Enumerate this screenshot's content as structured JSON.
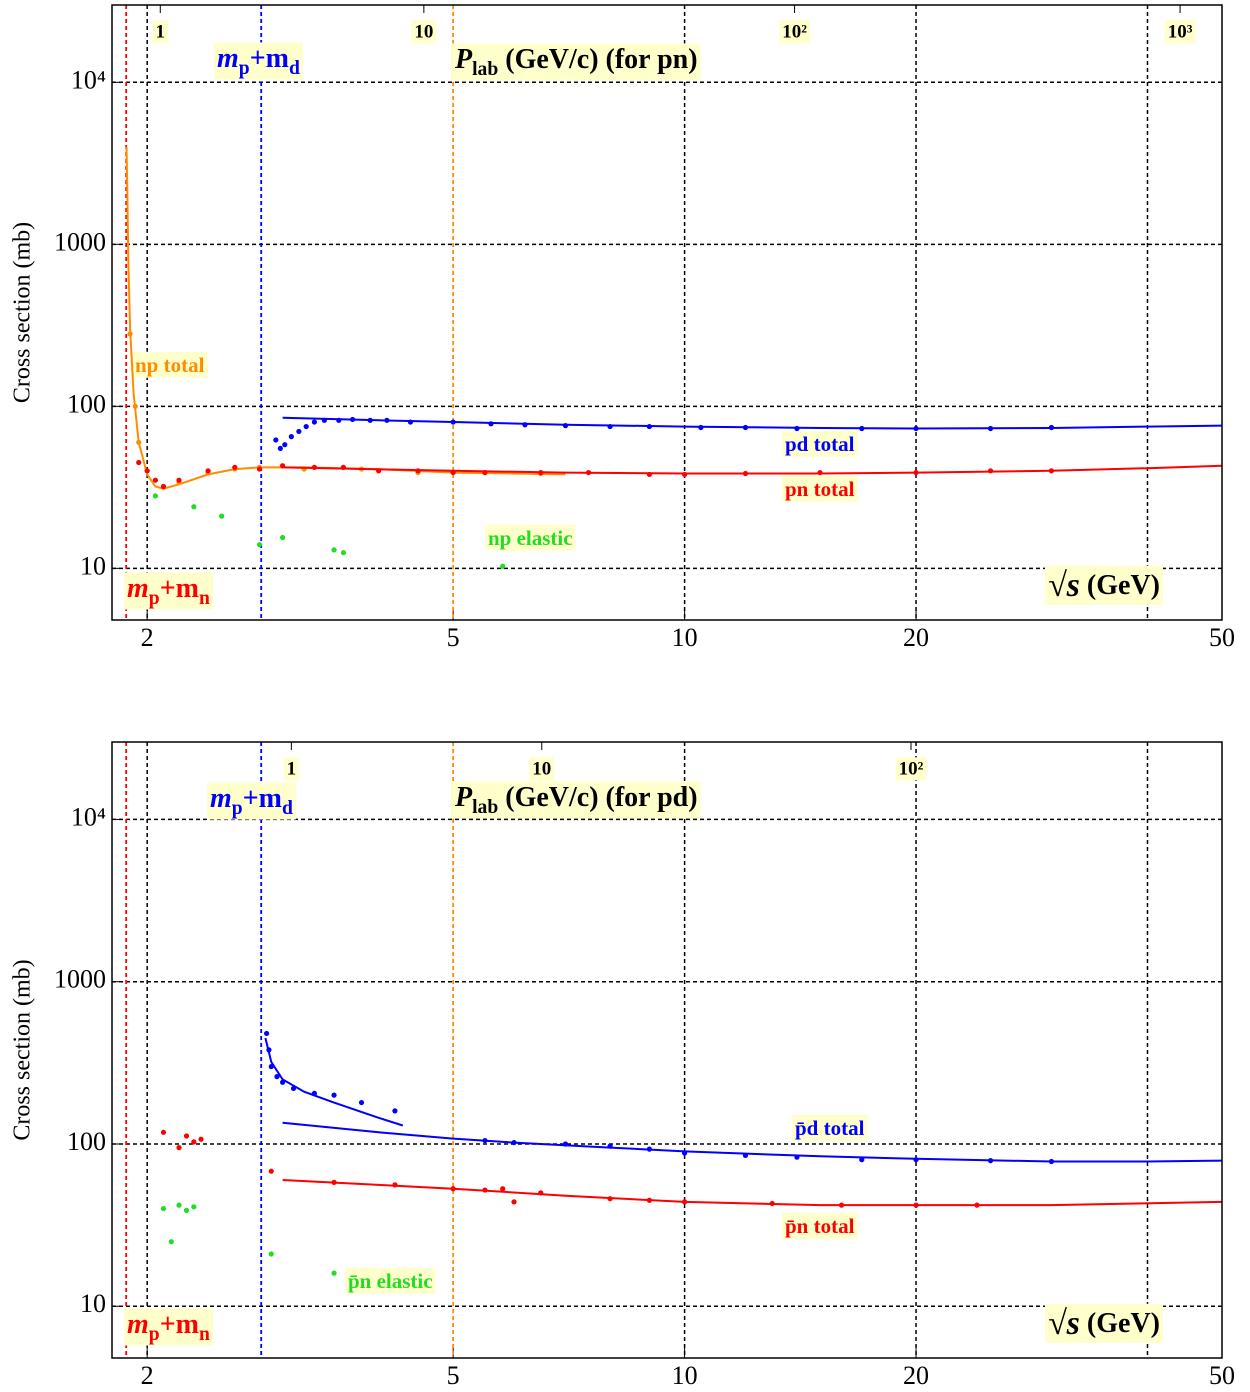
{
  "chart_data": [
    {
      "type": "line",
      "log_x": true,
      "log_y": true,
      "grid": true,
      "ylabel": "Cross section (mb)",
      "xlabel": [
        "√s",
        "  (GeV)"
      ],
      "x2label": [
        "P",
        "lab",
        " (GeV/c) (for pn)"
      ],
      "xlim": [
        1.8,
        50
      ],
      "ylim": [
        4.8,
        30000
      ],
      "xticks": [
        2,
        5,
        10,
        20,
        50
      ],
      "yticks": [
        10,
        100,
        1000,
        {
          "value": 10000,
          "label": "10⁴"
        }
      ],
      "x_grid": [
        2,
        10,
        20,
        40
      ],
      "x2ticks": [
        {
          "value": 2.08,
          "label": "1"
        },
        {
          "value": 4.58,
          "label": "10"
        },
        {
          "value": 13.9,
          "label": "10²"
        },
        {
          "value": 44.1,
          "label": "10³"
        }
      ],
      "reference_lines": [
        {
          "value": 1.878,
          "color": "#ff0000",
          "label": [
            "m",
            "p",
            "+m",
            "n"
          ]
        },
        {
          "value": 2.814,
          "color": "#0000ff",
          "label": [
            "m",
            "p",
            "+m",
            "d"
          ]
        },
        {
          "value": 5,
          "color": "#ff8c00"
        }
      ],
      "series": [
        {
          "name": "np total",
          "color": "#ff8c00",
          "style": "points",
          "x": [
            1.9,
            1.93,
            1.95,
            2.0,
            2.1,
            2.2,
            2.4,
            2.6,
            2.8,
            3.2,
            3.8,
            4.5,
            5.5,
            6.5
          ],
          "values": [
            280,
            100,
            60,
            40,
            32,
            34,
            39,
            41,
            42,
            41,
            41,
            39,
            39,
            38.5
          ]
        },
        {
          "color": "#ff8c00",
          "style": "line",
          "x": [
            1.88,
            1.885,
            1.89,
            1.9,
            1.92,
            1.95,
            2.0,
            2.05,
            2.1,
            2.2,
            2.4,
            2.6,
            2.8,
            3.2,
            4,
            5,
            6,
            7
          ],
          "values": [
            4000,
            2000,
            800,
            300,
            120,
            60,
            38,
            32,
            31,
            33,
            38,
            41,
            42,
            42,
            41,
            39,
            38.5,
            38
          ]
        },
        {
          "name": "pd total",
          "color": "#0000ff",
          "style": "line",
          "x": [
            3,
            4,
            5,
            7,
            10,
            15,
            20,
            30,
            40,
            50
          ],
          "values": [
            85,
            82,
            80,
            77,
            75,
            73.5,
            73,
            73.5,
            75,
            76
          ]
        },
        {
          "color": "#0000ff",
          "style": "points",
          "x": [
            2.94,
            2.98,
            3.02,
            3.08,
            3.15,
            3.22,
            3.3,
            3.4,
            3.55,
            3.7,
            3.9,
            4.1,
            4.4,
            5.0,
            5.6,
            6.2,
            7.0,
            8.0,
            9.0,
            10.5,
            12,
            14,
            17,
            20,
            25,
            30
          ],
          "values": [
            62,
            55,
            58,
            65,
            70,
            75,
            80,
            82,
            82,
            83,
            82,
            82,
            80,
            80,
            78,
            77,
            76,
            75,
            75,
            74,
            74,
            73,
            73,
            73,
            73,
            74
          ]
        },
        {
          "name": "pn total",
          "color": "#ff0000",
          "style": "line",
          "x": [
            3,
            5,
            7,
            10,
            15,
            20,
            30,
            40,
            50
          ],
          "values": [
            42,
            40,
            39,
            38.5,
            38.5,
            39,
            40,
            41.5,
            43
          ]
        },
        {
          "color": "#ff0000",
          "style": "points",
          "x": [
            1.95,
            2.0,
            2.05,
            2.1,
            2.2,
            2.4,
            2.6,
            2.8,
            3.0,
            3.3,
            3.6,
            4.0,
            4.5,
            5.0,
            5.5,
            6.5,
            7.5,
            9,
            10,
            12,
            15,
            20,
            25,
            30
          ],
          "values": [
            45,
            40,
            35,
            32,
            35,
            40,
            42,
            41,
            43,
            42,
            42,
            40,
            40,
            39,
            39,
            39,
            39,
            38,
            38,
            38.5,
            39,
            39,
            40,
            40
          ]
        },
        {
          "name": "np elastic",
          "color": "#22dd22",
          "style": "points",
          "x": [
            2.05,
            2.3,
            2.5,
            2.8,
            3.0,
            3.5,
            3.6,
            5.8
          ],
          "values": [
            28,
            24,
            21,
            14,
            15.5,
            13,
            12.5,
            10.3
          ]
        }
      ]
    },
    {
      "type": "line",
      "log_x": true,
      "log_y": true,
      "grid": true,
      "ylabel": "Cross section (mb)",
      "xlabel": [
        "√s",
        "  (GeV)"
      ],
      "x2label": [
        "P",
        "lab",
        " (GeV/c) (for pd)"
      ],
      "xlim": [
        1.8,
        50
      ],
      "ylim": [
        4.8,
        30000
      ],
      "xticks": [
        2,
        5,
        10,
        20,
        50
      ],
      "yticks": [
        10,
        100,
        1000,
        {
          "value": 10000,
          "label": "10⁴"
        }
      ],
      "x_grid": [
        2,
        10,
        20,
        40
      ],
      "x2ticks": [
        {
          "value": 3.08,
          "label": "1"
        },
        {
          "value": 6.52,
          "label": "10"
        },
        {
          "value": 19.7,
          "label": "10²"
        }
      ],
      "reference_lines": [
        {
          "value": 1.878,
          "color": "#ff0000",
          "label": [
            "m",
            "p",
            "+m",
            "n"
          ]
        },
        {
          "value": 2.814,
          "color": "#0000ff",
          "label": [
            "m",
            "p",
            "+m",
            "d"
          ]
        },
        {
          "value": 5,
          "color": "#ff8c00"
        }
      ],
      "series": [
        {
          "name": "p̄d total",
          "color": "#0000ff",
          "style": "line",
          "x": [
            3,
            4,
            5,
            6,
            8,
            10,
            15,
            20,
            30,
            40,
            50
          ],
          "values": [
            135,
            118,
            108,
            102,
            95,
            90,
            84,
            81,
            78,
            78,
            79
          ]
        },
        {
          "color": "#0000ff",
          "style": "line",
          "x": [
            2.85,
            2.9,
            3.0,
            3.2,
            3.5,
            4.0,
            4.3
          ],
          "values": [
            450,
            320,
            250,
            210,
            180,
            145,
            130
          ]
        },
        {
          "color": "#0000ff",
          "style": "points",
          "x": [
            2.86,
            2.88,
            2.9,
            2.95,
            3.0,
            3.1,
            3.3,
            3.5,
            3.8,
            4.2,
            5.5,
            6,
            7,
            8,
            9,
            10,
            12,
            14,
            17,
            20,
            25,
            30
          ],
          "values": [
            480,
            380,
            300,
            260,
            240,
            220,
            205,
            200,
            180,
            160,
            105,
            102,
            100,
            97,
            93,
            88,
            85,
            83,
            80,
            80,
            79,
            78
          ]
        },
        {
          "name": "p̄n total",
          "color": "#ff0000",
          "style": "line",
          "x": [
            3,
            4,
            5,
            7,
            10,
            15,
            20,
            30,
            50
          ],
          "values": [
            60,
            56,
            53,
            48,
            44,
            42,
            42,
            42,
            44
          ]
        },
        {
          "color": "#ff0000",
          "style": "points",
          "x": [
            2.1,
            2.2,
            2.25,
            2.3,
            2.35,
            2.9,
            3.5,
            4.2,
            5,
            5.5,
            5.8,
            6.0,
            6.5,
            8,
            9,
            10,
            13,
            16,
            20,
            24
          ],
          "values": [
            118,
            95,
            112,
            103,
            107,
            68,
            58,
            56,
            53,
            52,
            53,
            44,
            50,
            46,
            45,
            44,
            43,
            42,
            42,
            42
          ]
        },
        {
          "name": "p̄n elastic",
          "color": "#22dd22",
          "style": "points",
          "x": [
            2.1,
            2.15,
            2.2,
            2.25,
            2.3,
            2.9,
            3.5
          ],
          "values": [
            40,
            25,
            42,
            39,
            41,
            21,
            16
          ]
        }
      ]
    }
  ]
}
